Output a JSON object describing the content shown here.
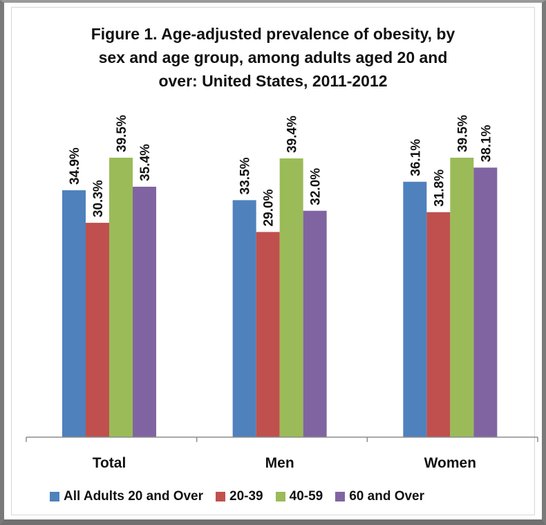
{
  "chart_data": {
    "type": "bar",
    "title": "Figure 1. Age-adjusted prevalence of obesity, by sex and age group, among adults aged 20 and over: United States, 2011-2012",
    "title_lines": [
      "Figure 1. Age-adjusted prevalence of obesity, by",
      "sex and age group, among adults aged 20 and",
      "over: United States, 2011-2012"
    ],
    "categories": [
      "Total",
      "Men",
      "Women"
    ],
    "series": [
      {
        "name": "All Adults 20 and Over",
        "color": "#4f81bd",
        "values": [
          34.9,
          33.5,
          36.1
        ],
        "labels": [
          "34.9%",
          "33.5%",
          "36.1%"
        ]
      },
      {
        "name": "20-39",
        "color": "#c0504d",
        "values": [
          30.3,
          29.0,
          31.8
        ],
        "labels": [
          "30.3%",
          "29.0%",
          "31.8%"
        ]
      },
      {
        "name": "40-59",
        "color": "#9bbb59",
        "values": [
          39.5,
          39.4,
          39.5
        ],
        "labels": [
          "39.5%",
          "39.4%",
          "39.5%"
        ]
      },
      {
        "name": "60 and Over",
        "color": "#8064a2",
        "values": [
          35.4,
          32.0,
          38.1
        ],
        "labels": [
          "35.4%",
          "32.0%",
          "38.1%"
        ]
      }
    ],
    "ylim": [
      0,
      39.5
    ],
    "xlabel": "",
    "ylabel": "",
    "grid": false,
    "legend_position": "bottom"
  }
}
